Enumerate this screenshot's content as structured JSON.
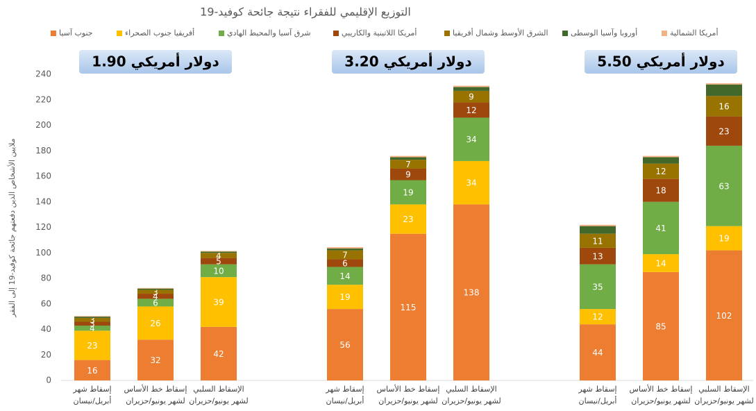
{
  "chart_data": {
    "type": "stacked_bar",
    "title": "التوزيع الإقليمي للفقراء نتيجة جائحة كوفيد-19",
    "y_label": "ملايين الأشخاص الذين دفعتهم جائحة كوفيد-19 إلى الفقر",
    "groups": [
      "1.90 دولار أمريكي",
      "3.20 دولار أمريكي",
      "5.50 دولار أمريكي"
    ],
    "categories": [
      [
        "إسقاط شهر",
        "أبريل/نيسان"
      ],
      [
        "إسقاط خط الأساس",
        "لشهر يونيو/حزيران"
      ],
      [
        "الإسقاط السلبي",
        "لشهر يونيو/حزيران"
      ],
      [
        "إسقاط شهر",
        "أبريل/نيسان"
      ],
      [
        "إسقاط خط الأساس",
        "لشهر يونيو/حزيران"
      ],
      [
        "الإسقاط السلبي",
        "لشهر يونيو/حزيران"
      ],
      [
        "إسقاط شهر",
        "أبريل/نيسان"
      ],
      [
        "إسقاط خط الأساس",
        "لشهر يونيو/حزيران"
      ],
      [
        "الإسقاط السلبي",
        "لشهر يونيو/حزيران"
      ]
    ],
    "series": [
      {
        "name": "جنوب آسيا",
        "color": "#ED7D31",
        "labels": true,
        "values": [
          16,
          32,
          42,
          56,
          115,
          138,
          44,
          85,
          102
        ]
      },
      {
        "name": "أفريقيا جنوب الصحراء",
        "color": "#FFC000",
        "labels": true,
        "values": [
          23,
          26,
          39,
          19,
          23,
          34,
          12,
          14,
          19
        ]
      },
      {
        "name": "شرق آسيا والمحيط الهادي",
        "color": "#70AD47",
        "labels": true,
        "values": [
          4,
          6,
          10,
          14,
          19,
          34,
          35,
          41,
          63
        ]
      },
      {
        "name": "أمريكا اللاتينية والكاريبي",
        "color": "#9E480E",
        "labels": true,
        "values": [
          3,
          4,
          5,
          6,
          9,
          12,
          13,
          18,
          23
        ]
      },
      {
        "name": "الشرق الأوسط وشمال أفريقيا",
        "color": "#997300",
        "labels": true,
        "values": [
          3,
          3,
          4,
          7,
          7,
          9,
          11,
          12,
          16
        ]
      },
      {
        "name": "أوروبا وآسيا الوسطى",
        "color": "#43682B",
        "labels": false,
        "values": [
          1,
          1,
          1,
          1.5,
          2,
          3,
          6,
          5,
          9
        ]
      },
      {
        "name": "أمريكا الشمالية",
        "color": "#F4B183",
        "labels": false,
        "values": [
          0.5,
          0.5,
          0.5,
          1,
          1,
          1,
          1,
          1,
          1
        ]
      }
    ],
    "ylim": [
      0,
      240
    ],
    "yticks": [
      0,
      20,
      40,
      60,
      80,
      100,
      120,
      140,
      160,
      180,
      200,
      220,
      240
    ],
    "grid": false
  }
}
